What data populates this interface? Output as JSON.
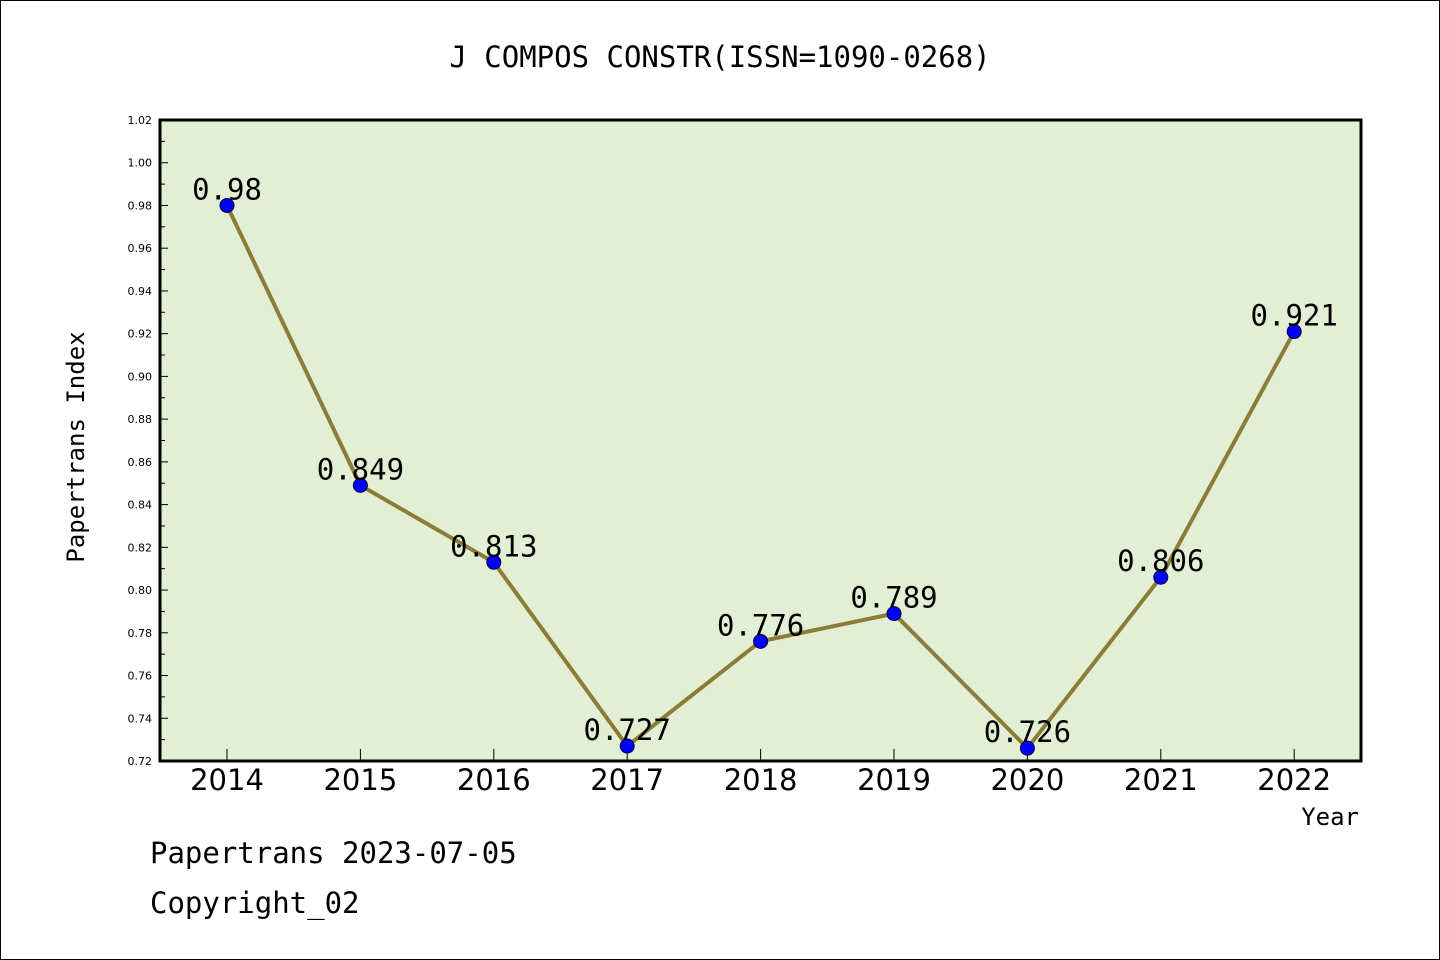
{
  "chart_data": {
    "type": "line",
    "title": "J COMPOS CONSTR(ISSN=1090-0268)",
    "xlabel": "Year",
    "ylabel": "Papertrans Index",
    "categories": [
      "2014",
      "2015",
      "2016",
      "2017",
      "2018",
      "2019",
      "2020",
      "2021",
      "2022"
    ],
    "series": [
      {
        "values": [
          0.98,
          0.849,
          0.813,
          0.727,
          0.776,
          0.789,
          0.726,
          0.806,
          0.921
        ],
        "labels": [
          "0.98",
          "0.849",
          "0.813",
          "0.727",
          "0.776",
          "0.789",
          "0.726",
          "0.806",
          "0.921"
        ]
      }
    ],
    "ylim": [
      0.72,
      1.02
    ],
    "yticks": [
      "0.72",
      "0.74",
      "0.76",
      "0.78",
      "0.80",
      "0.82",
      "0.84",
      "0.86",
      "0.88",
      "0.90",
      "0.92",
      "0.94",
      "0.96",
      "0.98",
      "1.00",
      "1.02"
    ],
    "grid": false,
    "legend": "none",
    "colors": {
      "plot_background": "#e2efd5",
      "line": "#8b7d35",
      "marker": "#0000ff"
    }
  },
  "footer": {
    "line1": "Papertrans 2023-07-05",
    "line2": "Copyright_02"
  }
}
